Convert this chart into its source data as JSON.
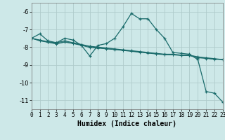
{
  "xlabel": "Humidex (Indice chaleur)",
  "bg_color": "#cde8e8",
  "grid_color": "#b0cccc",
  "line_color": "#1a6b6b",
  "xlim": [
    0,
    23
  ],
  "ylim": [
    -11.5,
    -5.5
  ],
  "yticks": [
    -11,
    -10,
    -9,
    -8,
    -7,
    -6
  ],
  "xticks": [
    0,
    1,
    2,
    3,
    4,
    5,
    6,
    7,
    8,
    9,
    10,
    11,
    12,
    13,
    14,
    15,
    16,
    17,
    18,
    19,
    20,
    21,
    22,
    23
  ],
  "s1_x": [
    0,
    1,
    2,
    3,
    4,
    5,
    6,
    7,
    8,
    9,
    10,
    11,
    12,
    13,
    14,
    15,
    16,
    17,
    18,
    19,
    20,
    21,
    22,
    23
  ],
  "s1_y": [
    -7.5,
    -7.25,
    -7.65,
    -7.75,
    -7.5,
    -7.6,
    -7.9,
    -8.5,
    -7.9,
    -7.8,
    -7.5,
    -6.85,
    -6.1,
    -6.4,
    -6.4,
    -7.0,
    -7.5,
    -8.3,
    -8.35,
    -8.4,
    -8.7,
    -10.5,
    -10.6,
    -11.1
  ],
  "s2_x": [
    0,
    1,
    2,
    3,
    4,
    5,
    6,
    7,
    8,
    9,
    10,
    11,
    12,
    13,
    14,
    15,
    16,
    17,
    18,
    19,
    20,
    21,
    22,
    23
  ],
  "s2_y": [
    -7.5,
    -7.6,
    -7.7,
    -7.75,
    -7.65,
    -7.75,
    -7.85,
    -7.95,
    -8.0,
    -8.05,
    -8.1,
    -8.15,
    -8.2,
    -8.25,
    -8.3,
    -8.35,
    -8.4,
    -8.4,
    -8.45,
    -8.45,
    -8.55,
    -8.6,
    -8.65,
    -8.7
  ],
  "s3_x": [
    0,
    1,
    2,
    3,
    4,
    5,
    6,
    7,
    8,
    9,
    10,
    11,
    12,
    13,
    14,
    15,
    16,
    17,
    18,
    19,
    20,
    21,
    22,
    23
  ],
  "s3_y": [
    -7.5,
    -7.62,
    -7.72,
    -7.8,
    -7.7,
    -7.78,
    -7.88,
    -7.98,
    -8.03,
    -8.08,
    -8.12,
    -8.17,
    -8.22,
    -8.27,
    -8.32,
    -8.37,
    -8.41,
    -8.42,
    -8.46,
    -8.47,
    -8.57,
    -8.62,
    -8.67,
    -8.7
  ],
  "s4_x": [
    0,
    1,
    2,
    3,
    4,
    5,
    6,
    7,
    8,
    9,
    10,
    11,
    12,
    13,
    14,
    15,
    16,
    17,
    18,
    19,
    20,
    21,
    22,
    23
  ],
  "s4_y": [
    -7.5,
    -7.65,
    -7.73,
    -7.82,
    -7.72,
    -7.8,
    -7.9,
    -8.02,
    -8.06,
    -8.1,
    -8.14,
    -8.19,
    -8.24,
    -8.29,
    -8.34,
    -8.39,
    -8.43,
    -8.44,
    -8.47,
    -8.48,
    -8.6,
    -8.64,
    -8.69,
    -8.7
  ]
}
